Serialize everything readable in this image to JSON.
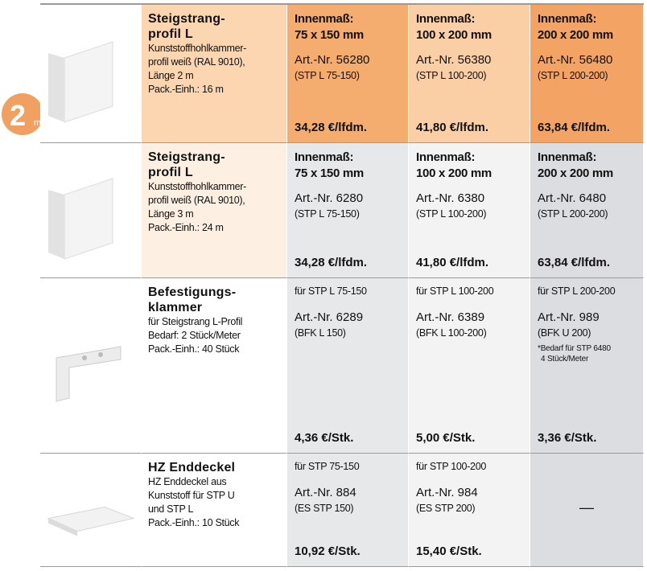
{
  "badge": {
    "number": "2",
    "unit": "m"
  },
  "rows": [
    {
      "title": [
        "Steigstrang-",
        "profil L"
      ],
      "description": [
        "Kunststoffhohlkammer-",
        "profil weiß (RAL 9010),",
        "Länge 2 m",
        "Pack.-Einh.: 16 m"
      ],
      "cells": [
        {
          "heading": [
            "Innenmaß:",
            "75 x 150 mm"
          ],
          "art": "Art.-Nr. 56280",
          "code": "(STP L 75-150)",
          "price": "34,28 €/lfdm."
        },
        {
          "heading": [
            "Innenmaß:",
            "100 x 200 mm"
          ],
          "art": "Art.-Nr. 56380",
          "code": "(STP L 100-200)",
          "price": "41,80 €/lfdm."
        },
        {
          "heading": [
            "Innenmaß:",
            "200 x 200 mm"
          ],
          "art": "Art.-Nr. 56480",
          "code": "(STP L 200-200)",
          "price": "63,84 €/lfdm."
        }
      ]
    },
    {
      "title": [
        "Steigstrang-",
        "profil L"
      ],
      "description": [
        "Kunststoffhohlkammer-",
        "profil weiß (RAL 9010),",
        "Länge 3 m",
        "Pack.-Einh.: 24 m"
      ],
      "cells": [
        {
          "heading": [
            "Innenmaß:",
            "75 x 150 mm"
          ],
          "art": "Art.-Nr. 6280",
          "code": "(STP L 75-150)",
          "price": "34,28 €/lfdm."
        },
        {
          "heading": [
            "Innenmaß:",
            "100 x 200 mm"
          ],
          "art": "Art.-Nr. 6380",
          "code": "(STP L 100-200)",
          "price": "41,80 €/lfdm."
        },
        {
          "heading": [
            "Innenmaß:",
            "200 x 200 mm"
          ],
          "art": "Art.-Nr. 6480",
          "code": "(STP L 200-200)",
          "price": "63,84 €/lfdm."
        }
      ]
    },
    {
      "title": [
        "Befestigungs-",
        "klammer"
      ],
      "description": [
        "für Steigstrang L-Profil",
        "Bedarf: 2 Stück/Meter",
        "Pack.-Einh.: 40 Stück"
      ],
      "cells": [
        {
          "heading": [
            "für STP L 75-150"
          ],
          "art": "Art.-Nr. 6289",
          "code": "(BFK L 150)",
          "price": "4,36 €/Stk."
        },
        {
          "heading": [
            "für STP L 100-200"
          ],
          "art": "Art.-Nr. 6389",
          "code": "(BFK L 100-200)",
          "price": "5,00 €/Stk."
        },
        {
          "heading": [
            "für STP L 200-200"
          ],
          "art": "Art.-Nr. 989",
          "code": "(BFK U 200)",
          "note": [
            "*Bedarf für STP 6480",
            "4 Stück/Meter"
          ],
          "price": "3,36 €/Stk."
        }
      ]
    },
    {
      "title": [
        "HZ Enddeckel"
      ],
      "description": [
        "HZ Enddeckel aus",
        "Kunststoff für STP U",
        "und STP L",
        "Pack.-Einh.: 10 Stück"
      ],
      "cells": [
        {
          "heading": [
            "für STP 75-150"
          ],
          "art": "Art.-Nr. 884",
          "code": "(ES STP 150)",
          "price": "10,92 €/Stk."
        },
        {
          "heading": [
            "für STP 100-200"
          ],
          "art": "Art.-Nr. 984",
          "code": "(ES STP 200)",
          "price": "15,40 €/Stk."
        },
        {
          "empty": "—"
        }
      ]
    }
  ]
}
